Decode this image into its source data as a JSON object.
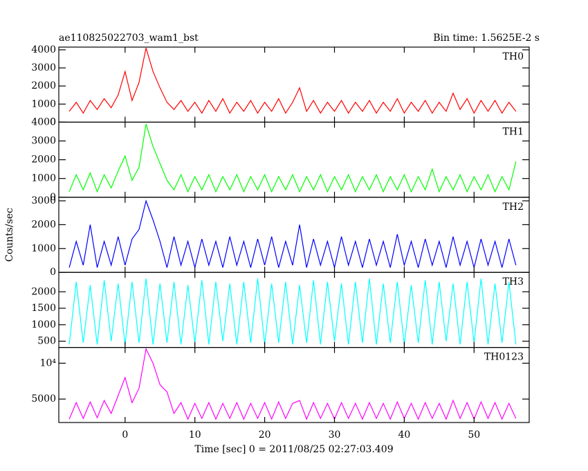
{
  "chart_data": {
    "type": "line",
    "title": "ae110825022703_wam1_bst",
    "subtitle": "Bin time: 1.5625E-2 s",
    "ylabel": "Counts/sec",
    "xlabel": "Time [sec] 0 = 2011/08/25 02:27:03.409",
    "xlim": [
      -9.5,
      57.9
    ],
    "xticks": [
      0,
      10,
      20,
      30,
      40,
      50
    ],
    "x": [
      -8,
      -7,
      -6,
      -5,
      -4,
      -3,
      -2,
      -1,
      0,
      1,
      2,
      3,
      4,
      5,
      6,
      7,
      8,
      9,
      10,
      11,
      12,
      13,
      14,
      15,
      16,
      17,
      18,
      19,
      20,
      21,
      22,
      23,
      24,
      25,
      26,
      27,
      28,
      29,
      30,
      31,
      32,
      33,
      34,
      35,
      36,
      37,
      38,
      39,
      40,
      41,
      42,
      43,
      44,
      45,
      46,
      47,
      48,
      49,
      50,
      51,
      52,
      53,
      54,
      55,
      56
    ],
    "panels": [
      {
        "name": "TH0",
        "color": "#ff0000",
        "ylim": [
          0,
          4150
        ],
        "yticks": [
          0,
          1000,
          2000,
          3000,
          4000
        ],
        "values": [
          600,
          1100,
          500,
          1200,
          700,
          1300,
          800,
          1500,
          2800,
          1200,
          2200,
          4100,
          2800,
          1900,
          1100,
          700,
          1200,
          600,
          1100,
          500,
          1200,
          600,
          1300,
          500,
          1100,
          600,
          1200,
          500,
          1100,
          600,
          1300,
          500,
          1100,
          1900,
          600,
          1200,
          500,
          1100,
          600,
          1200,
          500,
          1100,
          600,
          1200,
          500,
          1100,
          600,
          1300,
          500,
          1100,
          600,
          1200,
          500,
          1100,
          600,
          1600,
          700,
          1300,
          500,
          1200,
          600,
          1200,
          500,
          1100,
          600
        ]
      },
      {
        "name": "TH1",
        "color": "#00ff00",
        "ylim": [
          0,
          4000
        ],
        "yticks": [
          0,
          1000,
          2000,
          3000,
          4000
        ],
        "values": [
          300,
          1200,
          400,
          1300,
          300,
          1200,
          500,
          1400,
          2200,
          900,
          1600,
          3900,
          2700,
          1800,
          900,
          400,
          1200,
          300,
          1100,
          400,
          1200,
          300,
          1100,
          400,
          1200,
          300,
          1100,
          400,
          1200,
          300,
          1100,
          400,
          1200,
          300,
          1100,
          400,
          1200,
          300,
          1100,
          400,
          1200,
          300,
          1100,
          400,
          1200,
          300,
          1100,
          400,
          1200,
          300,
          1100,
          400,
          1500,
          300,
          1100,
          400,
          1200,
          300,
          1100,
          400,
          1200,
          300,
          1100,
          400,
          1900
        ]
      },
      {
        "name": "TH2",
        "color": "#0000ff",
        "ylim": [
          0,
          3150
        ],
        "yticks": [
          0,
          1000,
          2000,
          3000
        ],
        "values": [
          200,
          1300,
          300,
          2000,
          200,
          1300,
          300,
          1500,
          300,
          1400,
          1800,
          3000,
          2200,
          1300,
          200,
          1500,
          300,
          1300,
          200,
          1400,
          300,
          1300,
          200,
          1500,
          300,
          1300,
          200,
          1400,
          300,
          1500,
          200,
          1300,
          300,
          2000,
          200,
          1400,
          300,
          1300,
          200,
          1500,
          300,
          1300,
          200,
          1400,
          300,
          1300,
          200,
          1600,
          300,
          1300,
          200,
          1400,
          300,
          1300,
          200,
          1500,
          300,
          1300,
          200,
          1400,
          300,
          1300,
          200,
          1400,
          300
        ]
      },
      {
        "name": "TH3",
        "color": "#00ffff",
        "ylim": [
          310,
          2590
        ],
        "yticks": [
          500,
          1000,
          1500,
          2000
        ],
        "values": [
          400,
          2300,
          450,
          2200,
          400,
          2350,
          500,
          2250,
          400,
          2300,
          450,
          2400,
          400,
          2250,
          450,
          2300,
          400,
          2200,
          450,
          2350,
          400,
          2300,
          500,
          2250,
          400,
          2300,
          450,
          2400,
          400,
          2250,
          450,
          2300,
          400,
          2200,
          450,
          2350,
          400,
          2300,
          500,
          2250,
          400,
          2300,
          450,
          2400,
          400,
          2250,
          450,
          2300,
          400,
          2200,
          450,
          2350,
          400,
          2300,
          500,
          2250,
          400,
          2300,
          450,
          2400,
          400,
          2250,
          450,
          2300,
          400
        ]
      },
      {
        "name": "TH0123",
        "color": "#ff00ff",
        "ylim": [
          1730,
          12200
        ],
        "yticks": [
          5000,
          {
            "value": 10000,
            "label": "10⁴"
          }
        ],
        "values": [
          2200,
          4500,
          2300,
          4600,
          2400,
          4800,
          3000,
          5500,
          8000,
          4500,
          6500,
          12000,
          10000,
          7000,
          6000,
          3000,
          4500,
          2200,
          4400,
          2300,
          4500,
          2200,
          4400,
          2300,
          4500,
          2200,
          4400,
          2300,
          4500,
          2200,
          4600,
          2300,
          4400,
          4800,
          2200,
          4500,
          2300,
          4400,
          2200,
          4500,
          2300,
          4400,
          2200,
          4500,
          2300,
          4400,
          2200,
          4600,
          2300,
          4400,
          2200,
          4500,
          2300,
          4400,
          2200,
          4800,
          2300,
          4500,
          2200,
          4600,
          2300,
          4500,
          2200,
          4400,
          2300
        ]
      }
    ]
  }
}
